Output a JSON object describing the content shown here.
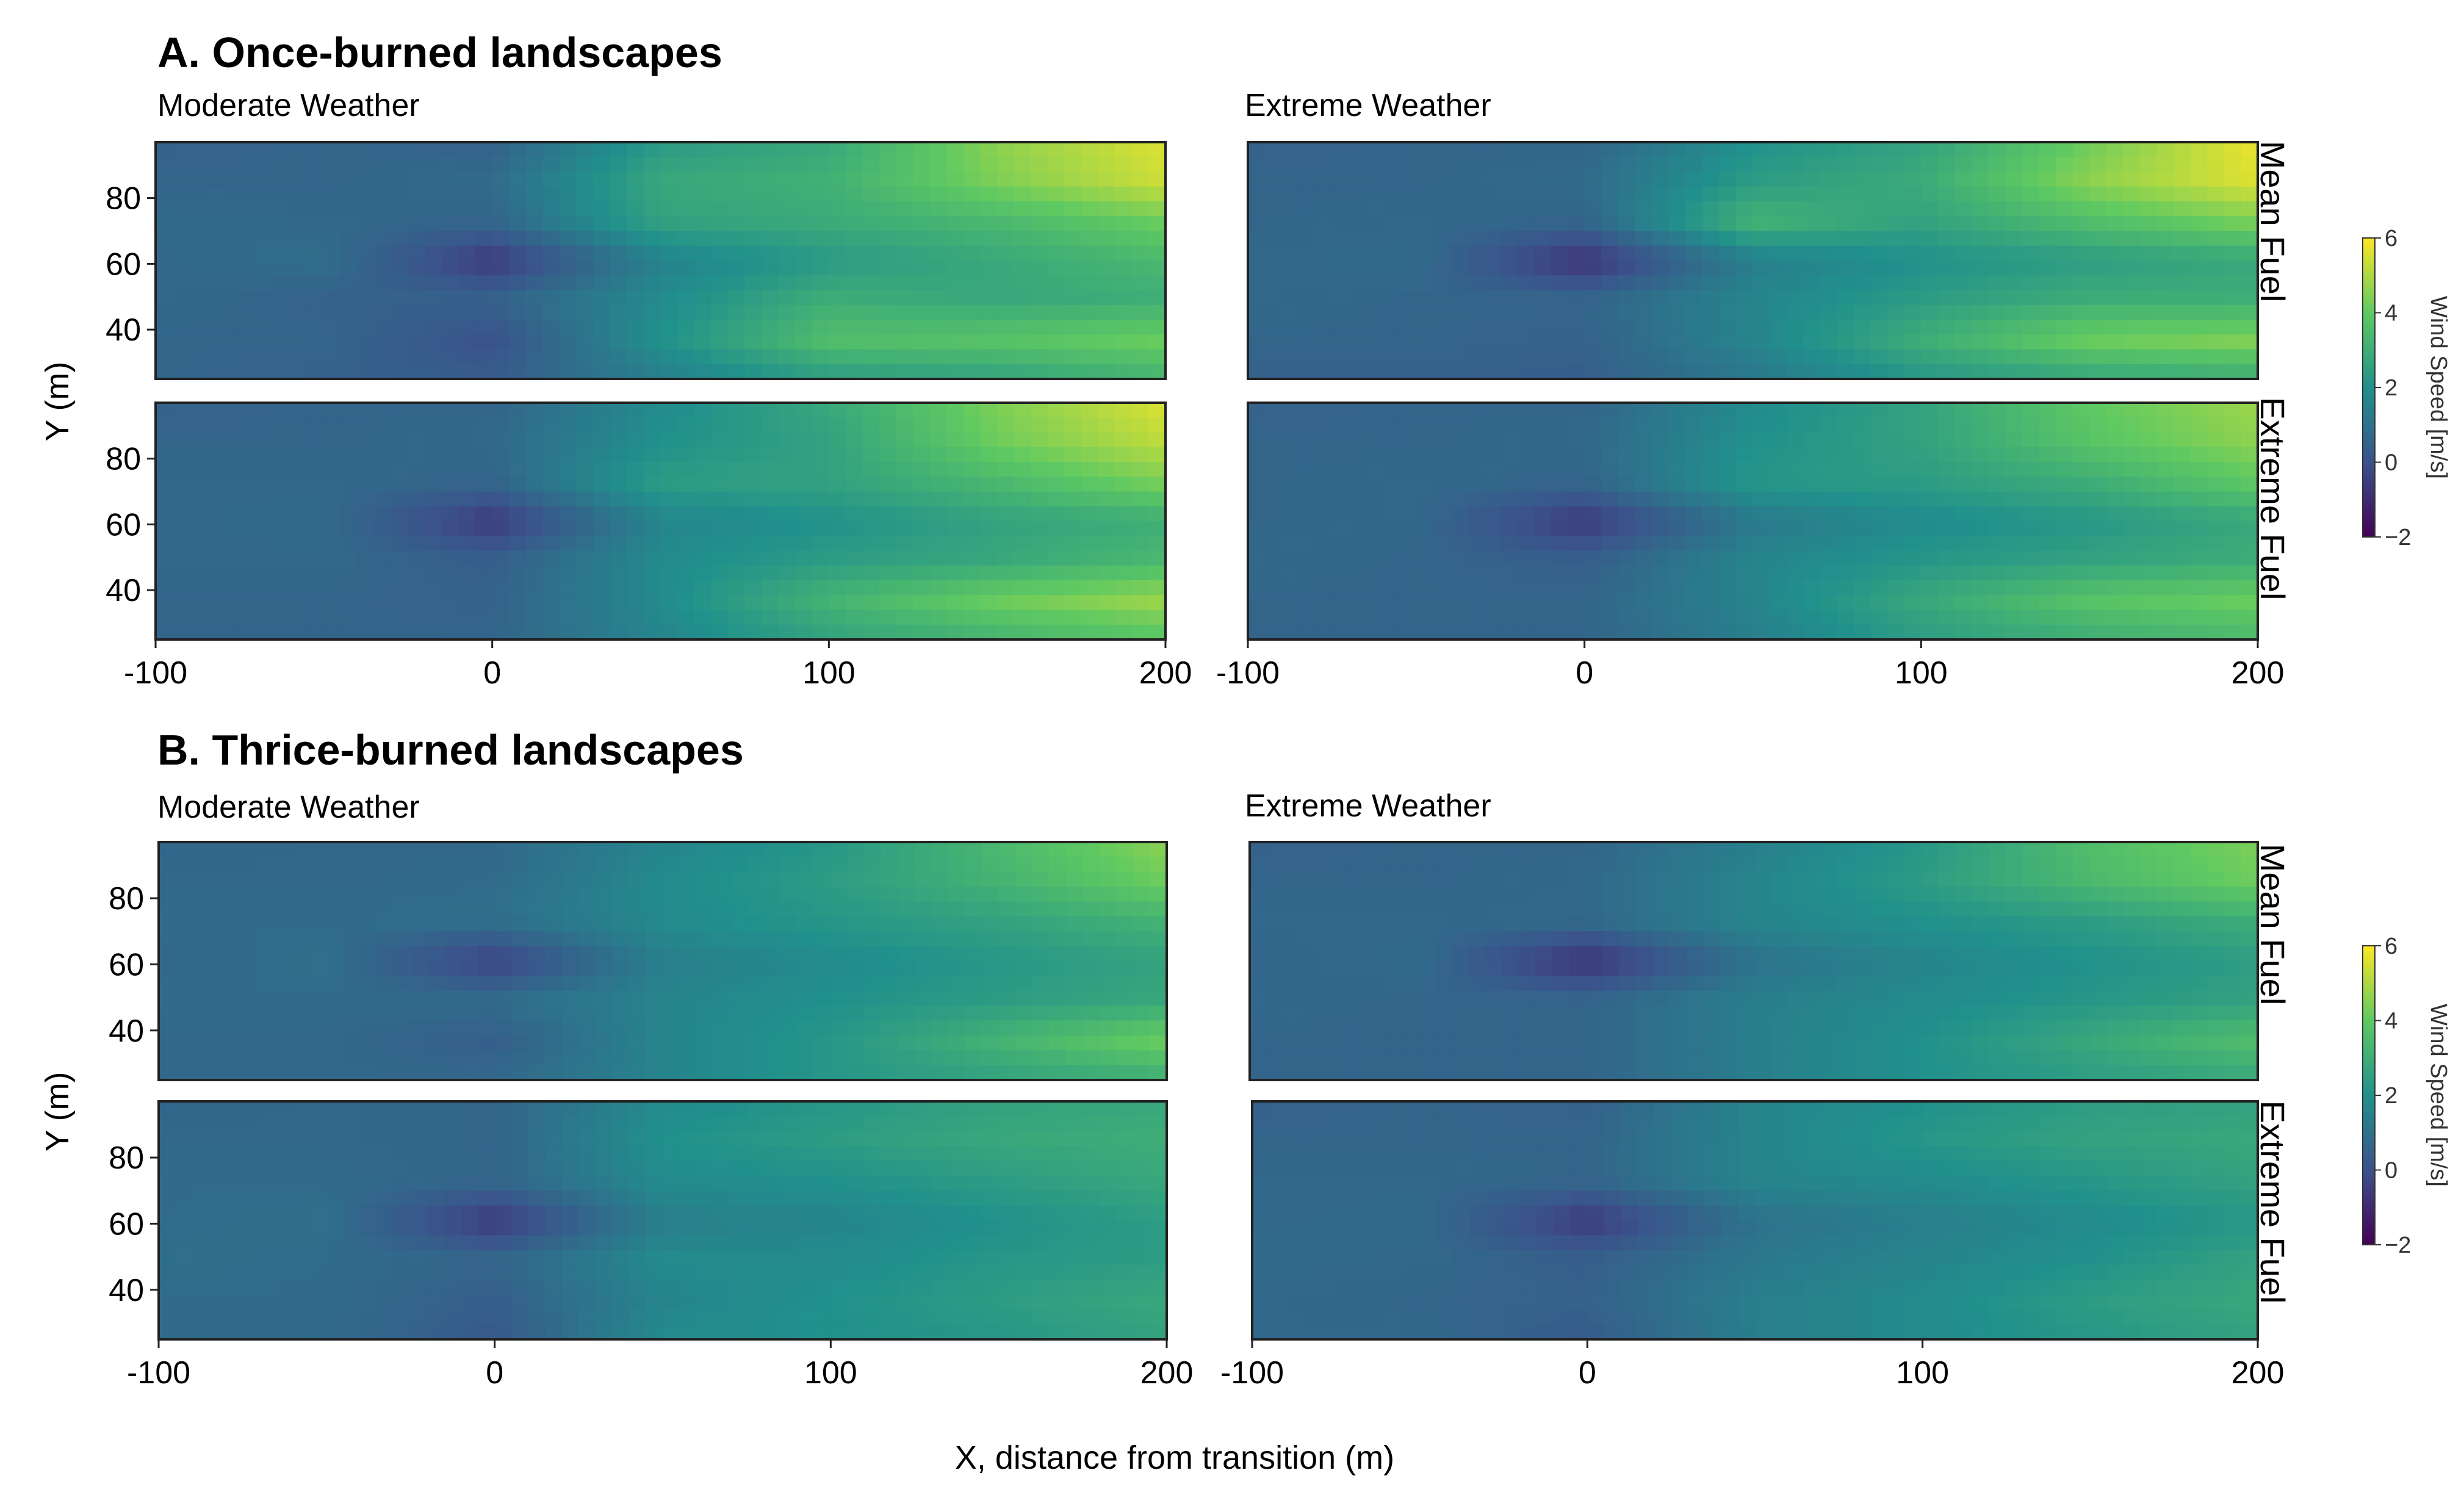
{
  "sections": [
    {
      "title": "A. Once-burned landscapes",
      "col_titles": [
        "Moderate Weather",
        "Extreme Weather"
      ]
    },
    {
      "title": "B. Thrice-burned landscapes",
      "col_titles": [
        "Moderate Weather",
        "Extreme Weather"
      ]
    }
  ],
  "row_labels": [
    "Mean Fuel",
    "Extreme Fuel"
  ],
  "colorbar": {
    "label": "Wind Speed [m/s]",
    "min": -2,
    "max": 6,
    "ticks": [
      -2,
      0,
      2,
      4,
      6
    ],
    "colors": [
      "#440154",
      "#3b528b",
      "#21918c",
      "#5ec962",
      "#fde725"
    ]
  },
  "chart_data": [
    {
      "type": "heatmap",
      "panel": "A. Once-burned landscapes / Moderate Weather / Mean Fuel",
      "xlabel": "X, distance from transition (m)",
      "ylabel": "Y (m)",
      "xlim": [
        -100,
        200
      ],
      "ylim": [
        25,
        97
      ],
      "xticks": [
        "-100",
        "0",
        "100",
        "200"
      ],
      "yticks": [
        "40",
        "60",
        "80"
      ],
      "x": [
        -100,
        -50,
        0,
        50,
        100,
        150,
        200
      ],
      "y": [
        30,
        40,
        50,
        60,
        70,
        80,
        90
      ],
      "values": [
        [
          0.6,
          0.5,
          0.3,
          1.4,
          2.4,
          2.6,
          3.2
        ],
        [
          0.6,
          0.6,
          0.0,
          2.0,
          3.6,
          3.8,
          4.2
        ],
        [
          0.7,
          0.5,
          0.5,
          1.8,
          3.0,
          2.8,
          3.0
        ],
        [
          0.7,
          0.9,
          -0.6,
          1.5,
          2.3,
          2.8,
          3.4
        ],
        [
          0.8,
          0.7,
          0.6,
          2.6,
          2.9,
          3.4,
          4.2
        ],
        [
          0.6,
          0.6,
          0.8,
          2.8,
          3.1,
          4.4,
          5.4
        ],
        [
          0.5,
          0.6,
          0.5,
          2.3,
          2.8,
          4.6,
          5.6
        ]
      ]
    },
    {
      "type": "heatmap",
      "panel": "A. Once-burned landscapes / Extreme Weather / Mean Fuel",
      "xlabel": "X, distance from transition (m)",
      "ylabel": "Y (m)",
      "xlim": [
        -100,
        200
      ],
      "ylim": [
        25,
        97
      ],
      "xticks": [
        "-100",
        "0",
        "100",
        "200"
      ],
      "yticks": [],
      "x": [
        -100,
        -50,
        0,
        50,
        100,
        150,
        200
      ],
      "y": [
        30,
        40,
        50,
        60,
        70,
        80,
        90
      ],
      "values": [
        [
          0.5,
          0.5,
          0.4,
          1.2,
          2.2,
          2.7,
          3.0
        ],
        [
          0.6,
          0.6,
          0.5,
          1.6,
          3.0,
          4.2,
          4.5
        ],
        [
          0.7,
          0.6,
          0.6,
          1.6,
          2.4,
          3.0,
          3.0
        ],
        [
          0.7,
          0.8,
          -0.8,
          1.4,
          2.0,
          2.4,
          2.8
        ],
        [
          0.6,
          0.7,
          0.6,
          3.2,
          2.6,
          3.6,
          4.4
        ],
        [
          0.6,
          0.6,
          0.8,
          2.4,
          2.9,
          4.6,
          5.6
        ],
        [
          0.5,
          0.6,
          0.6,
          2.0,
          2.6,
          4.2,
          5.8
        ]
      ]
    },
    {
      "type": "heatmap",
      "panel": "A. Once-burned landscapes / Moderate Weather / Extreme Fuel",
      "xlabel": "X, distance from transition (m)",
      "ylabel": "Y (m)",
      "xlim": [
        -100,
        200
      ],
      "ylim": [
        25,
        97
      ],
      "xticks": [
        "-100",
        "0",
        "100",
        "200"
      ],
      "yticks": [
        "40",
        "60",
        "80"
      ],
      "x": [
        -100,
        -50,
        0,
        50,
        100,
        150,
        200
      ],
      "y": [
        30,
        40,
        50,
        60,
        70,
        80,
        90
      ],
      "values": [
        [
          0.6,
          0.6,
          0.6,
          1.6,
          2.6,
          3.2,
          3.8
        ],
        [
          0.6,
          0.6,
          0.5,
          1.8,
          3.2,
          4.2,
          4.8
        ],
        [
          0.7,
          0.7,
          0.4,
          1.8,
          2.4,
          2.8,
          3.4
        ],
        [
          0.7,
          0.8,
          -0.6,
          1.6,
          2.0,
          2.6,
          3.0
        ],
        [
          0.7,
          0.7,
          0.6,
          2.4,
          2.6,
          3.4,
          4.4
        ],
        [
          0.6,
          0.6,
          0.7,
          2.0,
          2.6,
          4.2,
          5.2
        ],
        [
          0.5,
          0.6,
          0.6,
          1.8,
          2.8,
          4.4,
          5.6
        ]
      ]
    },
    {
      "type": "heatmap",
      "panel": "A. Once-burned landscapes / Extreme Weather / Extreme Fuel",
      "xlabel": "X, distance from transition (m)",
      "ylabel": "Y (m)",
      "xlim": [
        -100,
        200
      ],
      "ylim": [
        25,
        97
      ],
      "xticks": [
        "-100",
        "0",
        "100",
        "200"
      ],
      "yticks": [],
      "x": [
        -100,
        -50,
        0,
        50,
        100,
        150,
        200
      ],
      "y": [
        30,
        40,
        50,
        60,
        70,
        80,
        90
      ],
      "values": [
        [
          0.6,
          0.6,
          0.6,
          1.4,
          2.4,
          3.0,
          3.4
        ],
        [
          0.6,
          0.6,
          0.6,
          1.6,
          2.8,
          3.8,
          4.2
        ],
        [
          0.7,
          0.6,
          0.4,
          1.6,
          2.2,
          2.6,
          3.0
        ],
        [
          0.6,
          0.7,
          -0.6,
          1.2,
          1.8,
          2.2,
          2.8
        ],
        [
          0.6,
          0.7,
          0.6,
          2.2,
          2.4,
          3.0,
          4.0
        ],
        [
          0.6,
          0.6,
          0.7,
          2.0,
          2.6,
          3.8,
          4.6
        ],
        [
          0.5,
          0.6,
          0.6,
          1.8,
          2.6,
          4.0,
          4.8
        ]
      ]
    },
    {
      "type": "heatmap",
      "panel": "B. Thrice-burned landscapes / Moderate Weather / Mean Fuel",
      "xlabel": "X, distance from transition (m)",
      "ylabel": "Y (m)",
      "xlim": [
        -100,
        200
      ],
      "ylim": [
        25,
        97
      ],
      "xticks": [
        "-100",
        "0",
        "100",
        "200"
      ],
      "yticks": [
        "40",
        "60",
        "80"
      ],
      "x": [
        -100,
        -50,
        0,
        50,
        100,
        150,
        200
      ],
      "y": [
        30,
        40,
        50,
        60,
        70,
        80,
        90
      ],
      "values": [
        [
          0.7,
          0.7,
          0.7,
          1.6,
          2.2,
          2.6,
          3.0
        ],
        [
          0.7,
          0.7,
          0.4,
          1.6,
          2.2,
          3.2,
          4.2
        ],
        [
          0.8,
          0.8,
          0.8,
          1.6,
          2.0,
          2.4,
          2.8
        ],
        [
          0.7,
          0.9,
          -0.4,
          1.4,
          1.8,
          2.2,
          2.6
        ],
        [
          0.8,
          0.8,
          0.9,
          1.8,
          2.2,
          2.6,
          3.2
        ],
        [
          0.7,
          0.7,
          0.8,
          1.8,
          2.4,
          3.2,
          4.2
        ],
        [
          0.6,
          0.7,
          0.7,
          1.6,
          2.2,
          3.4,
          4.6
        ]
      ]
    },
    {
      "type": "heatmap",
      "panel": "B. Thrice-burned landscapes / Extreme Weather / Mean Fuel",
      "xlabel": "X, distance from transition (m)",
      "ylabel": "Y (m)",
      "xlim": [
        -100,
        200
      ],
      "ylim": [
        25,
        97
      ],
      "xticks": [
        "-100",
        "0",
        "100",
        "200"
      ],
      "yticks": [],
      "x": [
        -100,
        -50,
        0,
        50,
        100,
        150,
        200
      ],
      "y": [
        30,
        40,
        50,
        60,
        70,
        80,
        90
      ],
      "values": [
        [
          0.6,
          0.6,
          0.6,
          1.4,
          2.0,
          2.4,
          2.8
        ],
        [
          0.6,
          0.6,
          0.6,
          1.4,
          2.0,
          2.8,
          3.6
        ],
        [
          0.7,
          0.6,
          0.6,
          1.4,
          1.8,
          2.2,
          2.6
        ],
        [
          0.6,
          0.8,
          -0.8,
          1.0,
          1.6,
          2.0,
          2.4
        ],
        [
          0.7,
          0.7,
          0.7,
          1.6,
          2.0,
          2.4,
          3.0
        ],
        [
          0.6,
          0.6,
          0.7,
          1.6,
          2.4,
          3.4,
          4.2
        ],
        [
          0.5,
          0.6,
          0.6,
          1.4,
          2.2,
          3.6,
          4.4
        ]
      ]
    },
    {
      "type": "heatmap",
      "panel": "B. Thrice-burned landscapes / Moderate Weather / Extreme Fuel",
      "xlabel": "X, distance from transition (m)",
      "ylabel": "Y (m)",
      "xlim": [
        -100,
        200
      ],
      "ylim": [
        25,
        97
      ],
      "xticks": [
        "-100",
        "0",
        "100",
        "200"
      ],
      "yticks": [
        "40",
        "60",
        "80"
      ],
      "x": [
        -100,
        -50,
        0,
        50,
        100,
        150,
        200
      ],
      "y": [
        30,
        40,
        50,
        60,
        70,
        80,
        90
      ],
      "values": [
        [
          0.8,
          0.8,
          0.2,
          1.8,
          2.0,
          2.2,
          2.6
        ],
        [
          0.8,
          0.8,
          0.4,
          1.6,
          2.0,
          2.4,
          2.8
        ],
        [
          0.9,
          0.8,
          0.6,
          1.8,
          1.8,
          2.2,
          2.4
        ],
        [
          0.8,
          0.9,
          -0.6,
          1.4,
          1.6,
          2.0,
          2.4
        ],
        [
          0.8,
          0.8,
          0.6,
          1.8,
          2.0,
          2.4,
          2.8
        ],
        [
          0.7,
          0.7,
          0.6,
          2.0,
          2.4,
          2.8,
          3.0
        ],
        [
          0.6,
          0.7,
          0.6,
          1.8,
          2.2,
          2.6,
          2.8
        ]
      ]
    },
    {
      "type": "heatmap",
      "panel": "B. Thrice-burned landscapes / Extreme Weather / Extreme Fuel",
      "xlabel": "X, distance from transition (m)",
      "ylabel": "Y (m)",
      "xlim": [
        -100,
        200
      ],
      "ylim": [
        25,
        97
      ],
      "xticks": [
        "-100",
        "0",
        "100",
        "200"
      ],
      "yticks": [],
      "x": [
        -100,
        -50,
        0,
        50,
        100,
        150,
        200
      ],
      "y": [
        30,
        40,
        50,
        60,
        70,
        80,
        90
      ],
      "values": [
        [
          0.7,
          0.7,
          0.3,
          1.4,
          1.8,
          2.2,
          2.6
        ],
        [
          0.7,
          0.6,
          0.5,
          1.4,
          1.8,
          2.4,
          2.8
        ],
        [
          0.8,
          0.7,
          0.4,
          1.2,
          1.6,
          2.0,
          2.6
        ],
        [
          0.7,
          0.8,
          -0.6,
          1.0,
          1.4,
          1.8,
          2.2
        ],
        [
          0.7,
          0.7,
          0.6,
          1.6,
          1.8,
          2.2,
          2.6
        ],
        [
          0.6,
          0.6,
          0.6,
          1.6,
          2.2,
          2.6,
          2.8
        ],
        [
          0.5,
          0.6,
          0.5,
          1.6,
          2.0,
          2.4,
          2.6
        ]
      ]
    }
  ]
}
